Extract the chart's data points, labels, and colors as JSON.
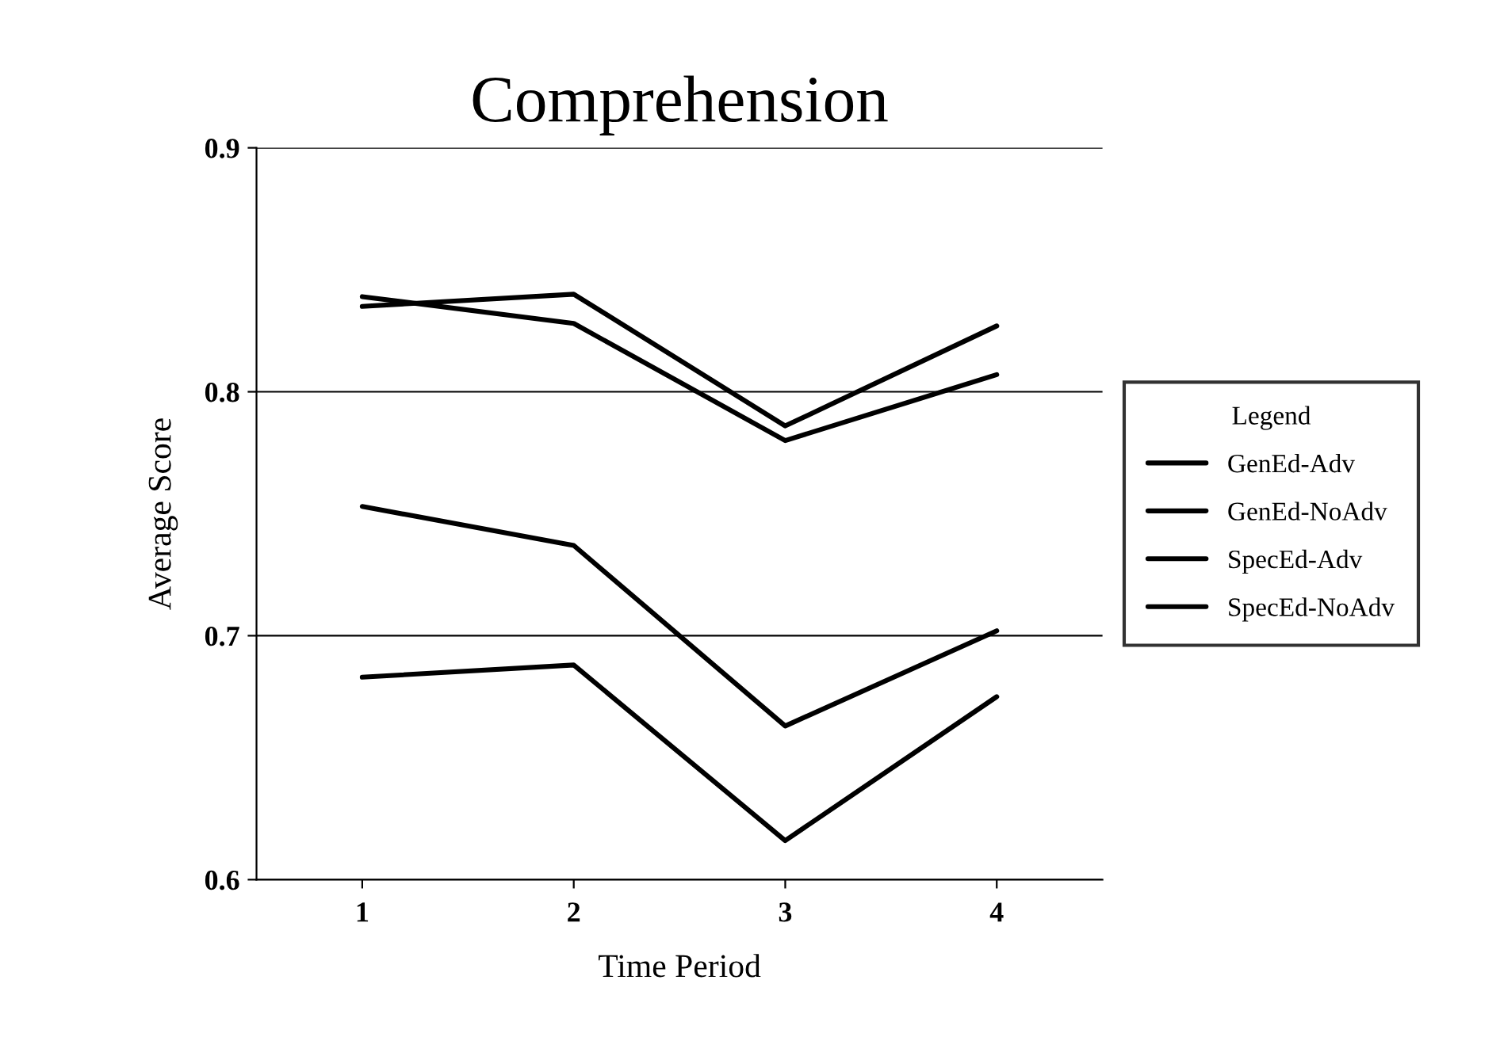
{
  "chart_data": {
    "type": "line",
    "title": "Comprehension",
    "xlabel": "Time Period",
    "ylabel": "Average Score",
    "legend_title": "Legend",
    "x": [
      1,
      2,
      3,
      4
    ],
    "series": [
      {
        "name": "GenEd-Adv",
        "color": "#000000",
        "values": [
          0.835,
          0.84,
          0.786,
          0.827
        ]
      },
      {
        "name": "GenEd-NoAdv",
        "color": "#000000",
        "values": [
          0.839,
          0.828,
          0.78,
          0.807
        ]
      },
      {
        "name": "SpecEd-Adv",
        "color": "#000000",
        "values": [
          0.753,
          0.737,
          0.663,
          0.702
        ]
      },
      {
        "name": "SpecEd-NoAdv",
        "color": "#000000",
        "values": [
          0.683,
          0.688,
          0.616,
          0.675
        ]
      }
    ],
    "xlim": [
      0.5,
      4.5
    ],
    "ylim": [
      0.6,
      0.9
    ],
    "xticks": [
      1,
      2,
      3,
      4
    ],
    "yticks": [
      0.6,
      0.7,
      0.8,
      0.9
    ],
    "grid": "y",
    "legend": "right",
    "marker": "none",
    "line_style": "solid"
  }
}
